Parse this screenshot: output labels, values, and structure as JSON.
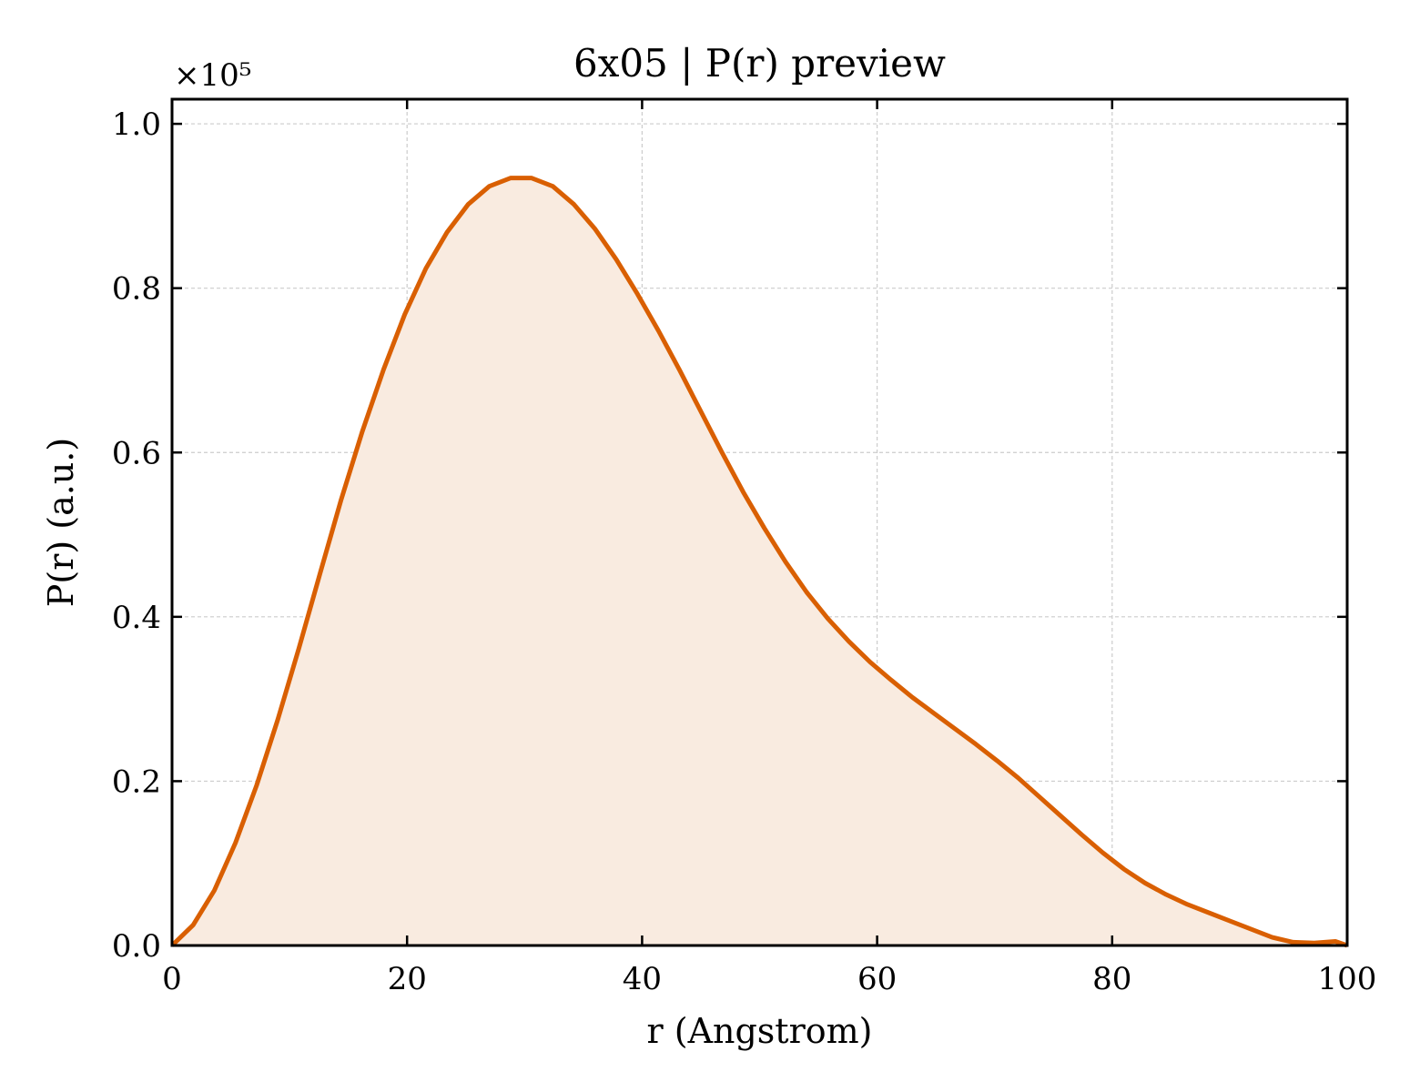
{
  "chart_data": {
    "type": "area",
    "title": "6x05 | P(r) preview",
    "xlabel": "r (Angstrom)",
    "ylabel": "P(r) (a.u.)",
    "y_offset_text": "×10⁵",
    "y_scale_factor": 100000,
    "xlim": [
      0,
      100
    ],
    "ylim": [
      0,
      1.03
    ],
    "grid": true,
    "x_ticks": [
      0,
      20,
      40,
      60,
      80,
      100
    ],
    "x_tick_labels": [
      "0",
      "20",
      "40",
      "60",
      "80",
      "100"
    ],
    "y_ticks": [
      0.0,
      0.2,
      0.4,
      0.6,
      0.8,
      1.0
    ],
    "y_tick_labels": [
      "0.0",
      "0.2",
      "0.4",
      "0.6",
      "0.8",
      "1.0"
    ],
    "line_color": "#d95f02",
    "fill_color": "#f9ebe0",
    "series": [
      {
        "x": [
          0,
          1.8,
          3.6,
          5.4,
          7.2,
          9.0,
          10.8,
          12.6,
          14.4,
          16.2,
          18.0,
          19.8,
          21.6,
          23.4,
          25.2,
          27.0,
          28.8,
          30.6,
          32.4,
          34.2,
          36.0,
          37.8,
          39.6,
          41.4,
          43.2,
          45.0,
          46.8,
          48.6,
          50.4,
          52.2,
          54.0,
          55.8,
          57.6,
          59.4,
          61.2,
          63.0,
          64.8,
          66.6,
          68.4,
          70.2,
          72.0,
          73.8,
          75.6,
          77.4,
          79.2,
          81.0,
          82.8,
          84.6,
          86.4,
          88.2,
          90.0,
          91.8,
          93.6,
          95.4,
          97.2,
          99.0,
          100.0
        ],
        "values": [
          0.0,
          0.025,
          0.067,
          0.125,
          0.195,
          0.275,
          0.362,
          0.453,
          0.543,
          0.626,
          0.701,
          0.768,
          0.824,
          0.868,
          0.902,
          0.924,
          0.934,
          0.934,
          0.924,
          0.902,
          0.872,
          0.835,
          0.793,
          0.748,
          0.7,
          0.65,
          0.6,
          0.552,
          0.508,
          0.467,
          0.43,
          0.398,
          0.37,
          0.345,
          0.323,
          0.302,
          0.283,
          0.264,
          0.245,
          0.225,
          0.204,
          0.181,
          0.158,
          0.135,
          0.113,
          0.093,
          0.076,
          0.062,
          0.05,
          0.04,
          0.03,
          0.02,
          0.01,
          0.004,
          0.003,
          0.005,
          0.0
        ]
      }
    ]
  }
}
